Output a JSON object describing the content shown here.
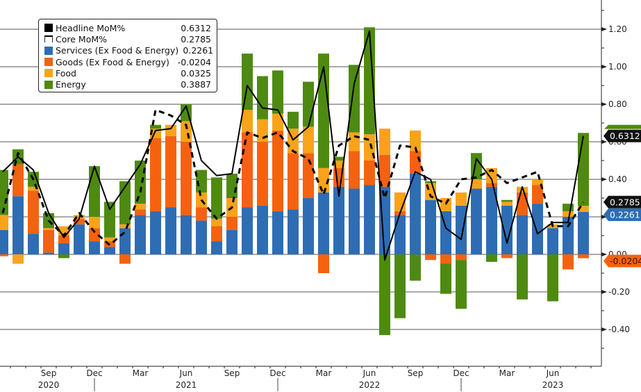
{
  "chart_data": {
    "type": "bar",
    "subtype": "stacked-bar-with-lines",
    "title": "",
    "xlabel": "",
    "ylabel": "",
    "ylim": [
      -0.58,
      1.35
    ],
    "y_ticks": [
      -0.4,
      -0.2,
      0.0,
      0.2,
      0.4,
      0.6,
      0.8,
      1.0,
      1.2
    ],
    "y_tick_labels": [
      "-0.40",
      "-0.20",
      "0.00",
      "0.20",
      "0.40",
      "0.60",
      "0.80",
      "1.00",
      "1.20"
    ],
    "y_axis_side": "right",
    "grid": true,
    "legend_position": "top-left",
    "categories": [
      "Jun 2020",
      "Jul 2020",
      "Aug 2020",
      "Sep 2020",
      "Oct 2020",
      "Nov 2020",
      "Dec 2020",
      "Jan 2021",
      "Feb 2021",
      "Mar 2021",
      "Apr 2021",
      "May 2021",
      "Jun 2021",
      "Jul 2021",
      "Aug 2021",
      "Sep 2021",
      "Oct 2021",
      "Nov 2021",
      "Dec 2021",
      "Jan 2022",
      "Feb 2022",
      "Mar 2022",
      "Apr 2022",
      "May 2022",
      "Jun 2022",
      "Jul 2022",
      "Aug 2022",
      "Sep 2022",
      "Oct 2022",
      "Nov 2022",
      "Dec 2022",
      "Jan 2023",
      "Feb 2023",
      "Mar 2023",
      "Apr 2023",
      "May 2023",
      "Jun 2023",
      "Jul 2023",
      "Aug 2023"
    ],
    "x_tick_labels": [
      {
        "month": "Sep",
        "year": "2020",
        "category": "Sep 2020"
      },
      {
        "month": "Dec",
        "year": "",
        "category": "Dec 2020"
      },
      {
        "month": "Mar",
        "year": "",
        "category": "Mar 2021"
      },
      {
        "month": "Jun",
        "year": "2021",
        "category": "Jun 2021"
      },
      {
        "month": "Sep",
        "year": "",
        "category": "Sep 2021"
      },
      {
        "month": "Dec",
        "year": "",
        "category": "Dec 2021"
      },
      {
        "month": "Mar",
        "year": "",
        "category": "Mar 2022"
      },
      {
        "month": "Jun",
        "year": "2022",
        "category": "Jun 2022"
      },
      {
        "month": "Sep",
        "year": "",
        "category": "Sep 2022"
      },
      {
        "month": "Dec",
        "year": "",
        "category": "Dec 2022"
      },
      {
        "month": "Mar",
        "year": "",
        "category": "Mar 2023"
      },
      {
        "month": "Jun",
        "year": "2023",
        "category": "Jun 2023"
      }
    ],
    "year_separators_after": [
      "Dec 2020",
      "Dec 2021",
      "Dec 2022"
    ],
    "series": [
      {
        "name": "Services (Ex Food & Energy)",
        "kind": "bar",
        "color": "#2e6db4",
        "values": [
          0.13,
          0.31,
          0.11,
          0.01,
          0.06,
          0.16,
          0.07,
          0.04,
          0.14,
          0.21,
          0.23,
          0.25,
          0.21,
          0.18,
          0.07,
          0.13,
          0.25,
          0.26,
          0.23,
          0.24,
          0.3,
          0.33,
          0.36,
          0.35,
          0.37,
          0.36,
          0.21,
          0.43,
          0.29,
          0.23,
          0.26,
          0.35,
          0.36,
          0.26,
          0.21,
          0.27,
          0.14,
          0.2,
          0.2261
        ]
      },
      {
        "name": "Goods (Ex Food & Energy)",
        "kind": "bar",
        "color": "#f5620f",
        "values": [
          -0.01,
          0.17,
          0.23,
          0.12,
          0.04,
          0.03,
          0.07,
          0.03,
          -0.05,
          0.03,
          0.39,
          0.38,
          0.39,
          0.07,
          0.08,
          0.07,
          0.4,
          0.34,
          0.43,
          0.3,
          0.24,
          -0.1,
          0.1,
          0.2,
          0.13,
          0.17,
          0.02,
          0.12,
          -0.03,
          -0.05,
          -0.03,
          0.0,
          0.02,
          -0.02,
          0.12,
          0.1,
          0.0,
          -0.08,
          -0.0204
        ]
      },
      {
        "name": "Food",
        "kind": "bar",
        "color": "#f9a31b",
        "values": [
          0.08,
          -0.05,
          0.02,
          0.01,
          0.05,
          0.02,
          0.06,
          0.02,
          0.02,
          0.03,
          0.05,
          0.06,
          0.11,
          0.08,
          0.04,
          0.1,
          0.12,
          0.12,
          0.09,
          0.13,
          0.14,
          0.13,
          0.04,
          0.1,
          0.14,
          0.14,
          0.1,
          0.11,
          0.09,
          0.07,
          0.07,
          0.05,
          0.08,
          0.02,
          0.03,
          0.03,
          0.02,
          0.03,
          0.0325
        ]
      },
      {
        "name": "Energy",
        "kind": "bar",
        "color": "#4e8a12",
        "values": [
          0.24,
          0.08,
          0.08,
          0.08,
          -0.02,
          0.0,
          0.27,
          0.19,
          0.23,
          0.23,
          0.02,
          0.0,
          0.09,
          0.12,
          0.22,
          0.13,
          0.3,
          0.23,
          0.23,
          0.09,
          0.24,
          0.61,
          0.02,
          0.36,
          0.57,
          -0.43,
          -0.34,
          -0.14,
          0.01,
          -0.16,
          -0.26,
          0.14,
          -0.04,
          0.01,
          -0.24,
          0.0,
          -0.25,
          0.04,
          0.3887
        ]
      },
      {
        "name": "Headline MoM%",
        "kind": "line",
        "color": "#000000",
        "style": "solid",
        "values": [
          0.44,
          0.52,
          0.45,
          0.22,
          0.09,
          0.19,
          0.47,
          0.24,
          0.36,
          0.48,
          0.66,
          0.67,
          0.79,
          0.5,
          0.42,
          0.43,
          0.9,
          0.78,
          0.77,
          0.61,
          0.68,
          1.0,
          0.31,
          0.91,
          1.19,
          -0.03,
          0.22,
          0.44,
          0.4,
          0.14,
          0.08,
          0.51,
          0.4,
          0.06,
          0.36,
          0.11,
          0.17,
          0.17,
          0.6312
        ]
      },
      {
        "name": "Core MoM%",
        "kind": "line",
        "color": "#000000",
        "style": "dashed",
        "values": [
          0.22,
          0.54,
          0.4,
          0.18,
          0.1,
          0.22,
          0.12,
          0.05,
          0.12,
          0.33,
          0.77,
          0.74,
          0.69,
          0.29,
          0.19,
          0.25,
          0.65,
          0.62,
          0.65,
          0.55,
          0.51,
          0.32,
          0.58,
          0.63,
          0.61,
          0.3,
          0.58,
          0.57,
          0.31,
          0.27,
          0.4,
          0.41,
          0.45,
          0.38,
          0.41,
          0.44,
          0.15,
          0.15,
          0.2785
        ]
      }
    ],
    "end_labels": [
      {
        "series": "Headline MoM%",
        "text": "0.6312",
        "bg": "#111111",
        "fg": "#ffffff",
        "value": 0.6312
      },
      {
        "series": "Core MoM%",
        "text": "0.2785",
        "bg": "#111111",
        "fg": "#ffffff",
        "value": 0.2785
      },
      {
        "series": "Services (Ex Food & Energy)",
        "text": "0.2261",
        "bg": "#2e6db4",
        "fg": "#ffffff",
        "value": 0.2261
      },
      {
        "series": "Goods (Ex Food & Energy)",
        "text": "-0.0204",
        "bg": "#f5620f",
        "fg": "#3a1300",
        "value": -0.0204
      }
    ]
  },
  "legend": {
    "items": [
      {
        "label": "Headline MoM%",
        "value": "0.6312",
        "swatch": "solid-black"
      },
      {
        "label": "Core MoM%",
        "value": "0.2785",
        "swatch": "dashed-black"
      },
      {
        "label": "Services (Ex Food & Energy)",
        "value": "0.2261",
        "color": "#2e6db4"
      },
      {
        "label": "Goods (Ex Food & Energy)",
        "value": "-0.0204",
        "color": "#f5620f"
      },
      {
        "label": "Food",
        "value": "0.0325",
        "color": "#f9a31b"
      },
      {
        "label": "Energy",
        "value": "0.3887",
        "color": "#4e8a12"
      }
    ]
  }
}
